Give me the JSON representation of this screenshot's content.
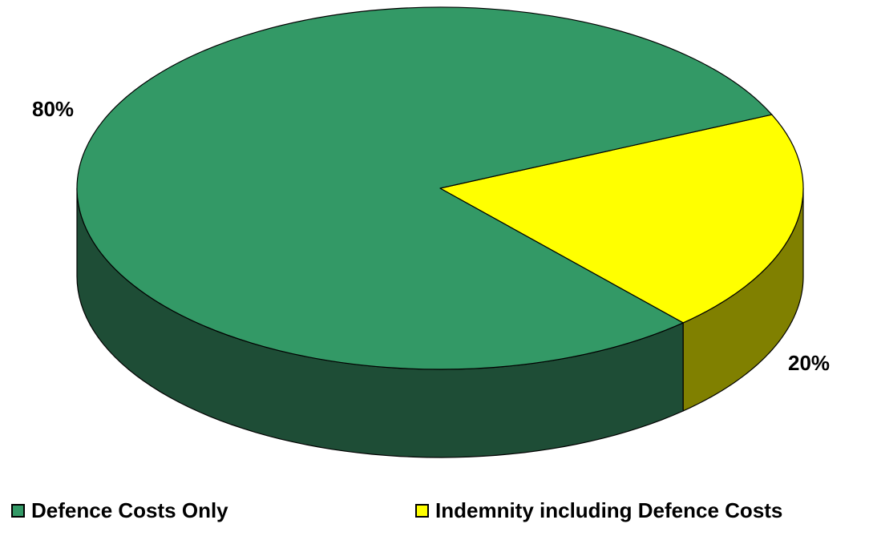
{
  "chart_data": {
    "type": "pie",
    "title": "",
    "is_3d": true,
    "categories": [
      "Defence Costs Only",
      "Indemnity including Defence Costs"
    ],
    "values": [
      80,
      20
    ],
    "labels": [
      "80%",
      "20%"
    ],
    "colors": {
      "top": [
        "#339966",
        "#FFFF00"
      ],
      "side": [
        "#1E4D36",
        "#808000"
      ]
    },
    "legend": {
      "placement": "bottom",
      "entries": [
        {
          "label": "Defence Costs Only",
          "color": "#339966"
        },
        {
          "label": "Indemnity including Defence Costs",
          "color": "#FFFF00"
        }
      ]
    }
  }
}
